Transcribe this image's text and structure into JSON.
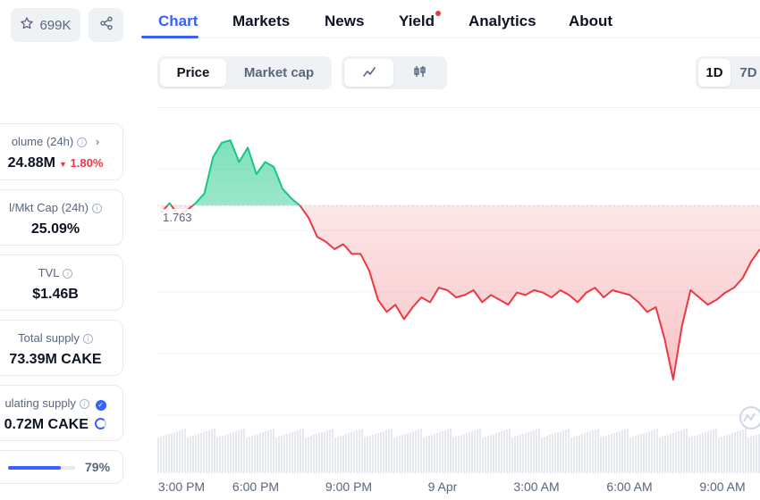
{
  "header": {
    "watchlist_count": "699K"
  },
  "tabs": [
    {
      "label": "Chart",
      "active": true
    },
    {
      "label": "Markets"
    },
    {
      "label": "News"
    },
    {
      "label": "Yield",
      "badge": true
    },
    {
      "label": "Analytics"
    },
    {
      "label": "About"
    }
  ],
  "controls": {
    "price": "Price",
    "market_cap": "Market cap",
    "range_1d": "1D",
    "range_7d": "7D"
  },
  "stats": {
    "volume": {
      "label": "olume (24h)",
      "value": "24.88M",
      "change": "1.80%"
    },
    "vol_mkt": {
      "label": "l/Mkt Cap (24h)",
      "value": "25.09%"
    },
    "tvl": {
      "label": "TVL",
      "value": "$1.46B"
    },
    "total_supply": {
      "label": "Total supply",
      "value": "73.39M CAKE"
    },
    "circ_supply": {
      "label": "ulating supply",
      "value": "0.72M CAKE",
      "progress_label": "79%",
      "progress": 0.79
    }
  },
  "colors": {
    "accent": "#3861fb",
    "up": "#16c784",
    "down": "#ea3943"
  },
  "chart_data": {
    "type": "line",
    "reference_label": "1.763",
    "x_tick_labels": [
      "3:00 PM",
      "6:00 PM",
      "9:00 PM",
      "9 Apr",
      "3:00 AM",
      "6:00 AM",
      "9:00 AM"
    ],
    "reference_value": 1.763,
    "y_range": [
      1.68,
      1.8
    ],
    "values": [
      1.76,
      1.764,
      1.759,
      1.761,
      1.764,
      1.768,
      1.783,
      1.789,
      1.79,
      1.781,
      1.787,
      1.776,
      1.781,
      1.779,
      1.77,
      1.766,
      1.763,
      1.758,
      1.75,
      1.748,
      1.745,
      1.747,
      1.743,
      1.743,
      1.736,
      1.724,
      1.719,
      1.722,
      1.716,
      1.721,
      1.725,
      1.723,
      1.729,
      1.728,
      1.725,
      1.726,
      1.728,
      1.723,
      1.726,
      1.724,
      1.722,
      1.727,
      1.726,
      1.728,
      1.727,
      1.725,
      1.728,
      1.726,
      1.723,
      1.727,
      1.729,
      1.725,
      1.728,
      1.727,
      1.726,
      1.723,
      1.719,
      1.721,
      1.708,
      1.691,
      1.713,
      1.728,
      1.725,
      1.722,
      1.724,
      1.727,
      1.729,
      1.733,
      1.74,
      1.745
    ]
  }
}
